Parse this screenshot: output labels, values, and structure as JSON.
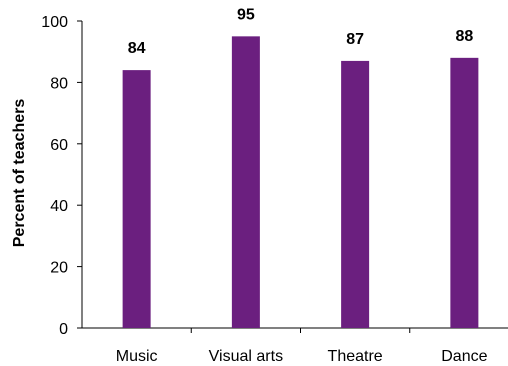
{
  "chart_data": {
    "type": "bar",
    "title": "",
    "xlabel": "",
    "ylabel": "Percent of teachers",
    "categories": [
      "Music",
      "Visual arts",
      "Theatre",
      "Dance"
    ],
    "values": [
      84,
      95,
      87,
      88
    ],
    "data_labels": [
      "84",
      "95",
      "87",
      "88"
    ],
    "ylim": [
      0,
      100
    ],
    "yticks": [
      0,
      20,
      40,
      60,
      80,
      100
    ],
    "grid": false,
    "legend": "none",
    "bar_color": "#6b1f7f"
  }
}
